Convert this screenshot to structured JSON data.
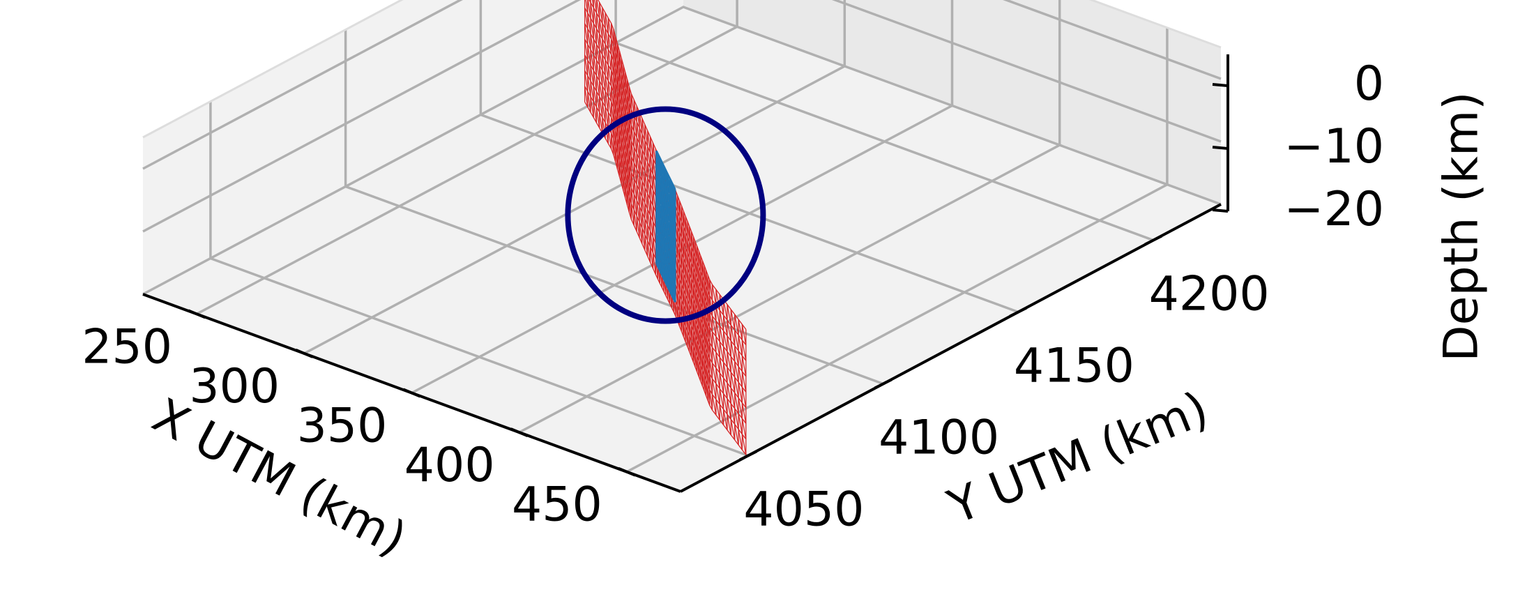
{
  "chart_data": {
    "type": "3d-mesh",
    "xlabel": "X UTM (km)",
    "ylabel": "Y UTM (km)",
    "zlabel": "Depth (km)",
    "xlim": [
      225,
      475
    ],
    "ylim": [
      4025,
      4225
    ],
    "zlim": [
      -20,
      5
    ],
    "xticks": [
      250,
      300,
      350,
      400,
      450
    ],
    "yticks": [
      4050,
      4100,
      4150,
      4200
    ],
    "zticks": [
      0,
      -10,
      -20
    ],
    "xtick_labels": [
      "250",
      "300",
      "350",
      "400",
      "450"
    ],
    "ytick_labels": [
      "4050",
      "4100",
      "4150",
      "4200"
    ],
    "ztick_labels": [
      "0",
      "−10",
      "−20"
    ],
    "grid": true,
    "series": [
      {
        "kind": "fault-mesh",
        "color": "#d62728",
        "depth_range": [
          -20,
          0
        ],
        "trace": [
          [
            247,
            4171
          ],
          [
            280,
            4155
          ],
          [
            320,
            4130
          ],
          [
            357,
            4110
          ],
          [
            382,
            4097
          ],
          [
            412,
            4080
          ],
          [
            440,
            4064
          ],
          [
            474,
            4050
          ]
        ],
        "strike_cells": 66,
        "depth_cells": 8
      },
      {
        "kind": "fault-mesh",
        "color": "#1f77b4",
        "depth_range": [
          -18,
          0
        ],
        "trace": [
          [
            357,
            4110
          ],
          [
            382,
            4097
          ]
        ],
        "strike_cells": 7,
        "depth_cells": 8
      }
    ],
    "annotations": [
      {
        "type": "ellipse",
        "color": "#000080",
        "center": [
          370,
          4103,
          -7
        ]
      }
    ]
  }
}
